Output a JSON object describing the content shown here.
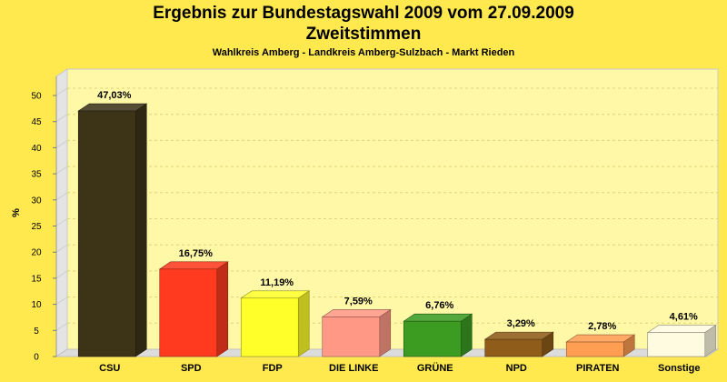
{
  "chart_data": {
    "type": "bar",
    "title_line1": "Ergebnis zur Bundestagswahl 2009 vom 27.09.2009",
    "title_line2": "Zweitstimmen",
    "subtitle": "Wahlkreis Amberg - Landkreis Amberg-Sulzbach - Markt Rieden",
    "ylabel": "%",
    "xlabel": "",
    "ylim": [
      0,
      50
    ],
    "yticks": [
      0,
      5,
      10,
      15,
      20,
      25,
      30,
      35,
      40,
      45,
      50
    ],
    "grid": true,
    "categories": [
      "CSU",
      "SPD",
      "FDP",
      "DIE LINKE",
      "GRÜNE",
      "NPD",
      "PIRATEN",
      "Sonstige"
    ],
    "values": [
      47.03,
      16.75,
      11.19,
      7.59,
      6.76,
      3.29,
      2.78,
      4.61
    ],
    "value_labels": [
      "47,03%",
      "16,75%",
      "11,19%",
      "7,59%",
      "6,76%",
      "3,29%",
      "2,78%",
      "4,61%"
    ],
    "colors": [
      "#3d3418",
      "#ff3a1f",
      "#ffff2a",
      "#ff9985",
      "#3c9c22",
      "#8f5d19",
      "#ff9d52",
      "#fffbe0"
    ]
  }
}
